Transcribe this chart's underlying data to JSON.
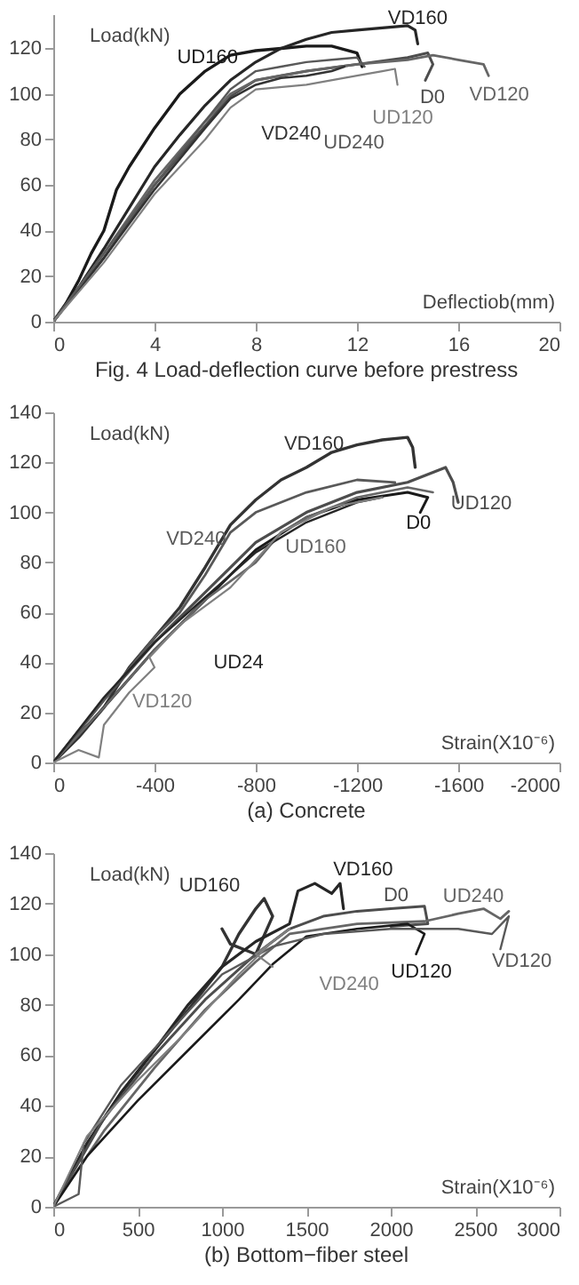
{
  "chart_data": [
    {
      "type": "line",
      "title": "Fig. 4 Load-deflection curve before prestress",
      "xlabel": "Deflectiob(mm)",
      "ylabel": "Load(kN)",
      "xlim": [
        0,
        20
      ],
      "xticks": [
        0,
        4,
        8,
        12,
        16,
        20
      ],
      "ylim": [
        0,
        135
      ],
      "yticks": [
        0,
        20,
        40,
        60,
        80,
        100,
        120
      ],
      "series": [
        {
          "name": "UD160",
          "color": "#1a1a1a",
          "x": [
            0,
            0.5,
            1,
            1.5,
            2,
            2.5,
            3,
            4,
            5,
            6,
            7,
            8,
            9,
            10,
            11,
            12,
            12.2
          ],
          "values": [
            0,
            8,
            18,
            30,
            40,
            58,
            68,
            85,
            100,
            110,
            117,
            119,
            120,
            121,
            121,
            118,
            112
          ]
        },
        {
          "name": "VD160",
          "color": "#262626",
          "x": [
            0,
            1,
            2,
            3,
            4,
            5,
            6,
            7,
            8,
            9,
            10,
            11,
            12,
            13,
            14,
            14.3,
            14.4
          ],
          "values": [
            0,
            15,
            32,
            50,
            68,
            82,
            95,
            106,
            114,
            120,
            124,
            127,
            128,
            129,
            130,
            128,
            122
          ]
        },
        {
          "name": "D0",
          "color": "#4d4d4d",
          "x": [
            0,
            2,
            4,
            6,
            7,
            8,
            10,
            12,
            14,
            14.8,
            15,
            14.7
          ],
          "values": [
            0,
            28,
            60,
            86,
            99,
            106,
            110,
            113,
            116,
            118,
            113,
            106
          ]
        },
        {
          "name": "VD120",
          "color": "#666666",
          "x": [
            0,
            2,
            4,
            6,
            7,
            8,
            10,
            12,
            14,
            15,
            16,
            17,
            17.2
          ],
          "values": [
            0,
            30,
            62,
            88,
            100,
            106,
            110,
            113,
            115,
            117,
            115,
            113,
            108
          ]
        },
        {
          "name": "VD240",
          "color": "#333333",
          "x": [
            0,
            2,
            4,
            6,
            7,
            8,
            9,
            10,
            11,
            11.5
          ],
          "values": [
            0,
            28,
            58,
            85,
            98,
            104,
            107,
            108,
            110,
            112
          ]
        },
        {
          "name": "UD240",
          "color": "#595959",
          "x": [
            0,
            2,
            4,
            6,
            7,
            8,
            9,
            10,
            11,
            12,
            12.3
          ],
          "values": [
            0,
            30,
            60,
            88,
            102,
            110,
            112,
            114,
            115,
            116,
            112
          ]
        },
        {
          "name": "UD120",
          "color": "#808080",
          "x": [
            0,
            2,
            4,
            6,
            7,
            8,
            10,
            12,
            13,
            13.5,
            13.6
          ],
          "values": [
            0,
            26,
            56,
            80,
            94,
            102,
            104,
            108,
            110,
            111,
            104
          ]
        }
      ]
    },
    {
      "type": "line",
      "title": "(a)  Concrete",
      "xlabel": "Strain(X10⁻⁶)",
      "ylabel": "Load(kN)",
      "xlim": [
        0,
        -2000
      ],
      "xticks": [
        0,
        -400,
        -800,
        -1200,
        -1600,
        -2000
      ],
      "ylim": [
        0,
        140
      ],
      "yticks": [
        0,
        20,
        40,
        60,
        80,
        100,
        120,
        140
      ],
      "series": [
        {
          "name": "VD160",
          "color": "#333333",
          "x": [
            0,
            -100,
            -200,
            -300,
            -400,
            -500,
            -600,
            -700,
            -800,
            -900,
            -1000,
            -1100,
            -1200,
            -1300,
            -1400,
            -1420,
            -1430
          ],
          "values": [
            0,
            10,
            22,
            38,
            50,
            62,
            78,
            95,
            105,
            113,
            118,
            124,
            127,
            129,
            130,
            126,
            118
          ]
        },
        {
          "name": "UD120",
          "color": "#4d4d4d",
          "x": [
            0,
            -200,
            -400,
            -600,
            -800,
            -1000,
            -1200,
            -1400,
            -1550,
            -1580,
            -1600
          ],
          "values": [
            0,
            25,
            48,
            68,
            88,
            100,
            108,
            112,
            118,
            112,
            104
          ]
        },
        {
          "name": "D0",
          "color": "#1a1a1a",
          "x": [
            0,
            -200,
            -400,
            -600,
            -800,
            -1000,
            -1200,
            -1400,
            -1480,
            -1450
          ],
          "values": [
            0,
            22,
            45,
            65,
            85,
            98,
            105,
            108,
            106,
            100
          ]
        },
        {
          "name": "VD240",
          "color": "#595959",
          "x": [
            0,
            -200,
            -400,
            -500,
            -600,
            -700,
            -800,
            -1000,
            -1200,
            -1350
          ],
          "values": [
            0,
            25,
            50,
            60,
            75,
            92,
            100,
            108,
            113,
            112
          ]
        },
        {
          "name": "UD160",
          "color": "#666666",
          "x": [
            0,
            -200,
            -400,
            -600,
            -800,
            -900,
            -1000,
            -1200,
            -1400,
            -1500
          ],
          "values": [
            0,
            22,
            45,
            65,
            80,
            92,
            98,
            106,
            110,
            108
          ]
        },
        {
          "name": "UD24",
          "color": "#262626",
          "x": [
            0,
            -200,
            -400,
            -600,
            -800,
            -1000,
            -1200,
            -1300
          ],
          "values": [
            0,
            26,
            48,
            66,
            84,
            96,
            104,
            106
          ]
        },
        {
          "name": "VD120",
          "color": "#808080",
          "x": [
            0,
            -100,
            -180,
            -200,
            -300,
            -400,
            -380,
            -500,
            -700,
            -900,
            -1100,
            -1300
          ],
          "values": [
            0,
            5,
            2,
            15,
            28,
            38,
            42,
            55,
            70,
            92,
            102,
            106
          ]
        }
      ]
    },
    {
      "type": "line",
      "title": "(b)  Bottom−fiber steel",
      "xlabel": "Strain(X10⁻⁶)",
      "ylabel": "Load(kN)",
      "xlim": [
        0,
        3000
      ],
      "xticks": [
        0,
        500,
        1000,
        1500,
        2000,
        2500,
        3000
      ],
      "ylim": [
        0,
        140
      ],
      "yticks": [
        0,
        20,
        40,
        60,
        80,
        100,
        120,
        140
      ],
      "series": [
        {
          "name": "UD160",
          "color": "#333333",
          "x": [
            0,
            200,
            400,
            600,
            800,
            1000,
            1100,
            1200,
            1250,
            1300,
            1200,
            1050,
            1000
          ],
          "values": [
            0,
            25,
            45,
            62,
            78,
            95,
            108,
            118,
            122,
            115,
            100,
            104,
            110
          ]
        },
        {
          "name": "VD160",
          "color": "#262626",
          "x": [
            0,
            200,
            400,
            600,
            800,
            1000,
            1200,
            1400,
            1450,
            1550,
            1650,
            1700,
            1720
          ],
          "values": [
            0,
            25,
            45,
            62,
            80,
            95,
            105,
            112,
            125,
            128,
            124,
            128,
            118
          ]
        },
        {
          "name": "D0",
          "color": "#4d4d4d",
          "x": [
            0,
            300,
            600,
            900,
            1200,
            1400,
            1600,
            1800,
            2000,
            2200,
            2220,
            2000
          ],
          "values": [
            0,
            35,
            60,
            82,
            100,
            110,
            115,
            117,
            118,
            119,
            112,
            111
          ]
        },
        {
          "name": "UD240",
          "color": "#666666",
          "x": [
            0,
            300,
            600,
            900,
            1200,
            1400,
            1800,
            2200,
            2400,
            2550,
            2650,
            2700
          ],
          "values": [
            0,
            30,
            55,
            78,
            97,
            108,
            112,
            113,
            116,
            118,
            114,
            117
          ]
        },
        {
          "name": "UD120",
          "color": "#1a1a1a",
          "x": [
            0,
            200,
            500,
            800,
            1100,
            1300,
            1500,
            1800,
            2100,
            2200,
            2150
          ],
          "values": [
            0,
            20,
            42,
            62,
            82,
            96,
            107,
            110,
            112,
            108,
            100
          ]
        },
        {
          "name": "VD120",
          "color": "#595959",
          "x": [
            0,
            150,
            180,
            400,
            700,
            1000,
            1300,
            1600,
            2000,
            2400,
            2600,
            2700,
            2650
          ],
          "values": [
            0,
            5,
            25,
            48,
            70,
            92,
            103,
            108,
            110,
            110,
            108,
            115,
            102
          ]
        },
        {
          "name": "VD240",
          "color": "#808080",
          "x": [
            0,
            200,
            500,
            800,
            1100,
            1300,
            1400,
            1200,
            1300
          ],
          "values": [
            0,
            28,
            50,
            70,
            92,
            105,
            110,
            100,
            95
          ]
        }
      ]
    }
  ]
}
